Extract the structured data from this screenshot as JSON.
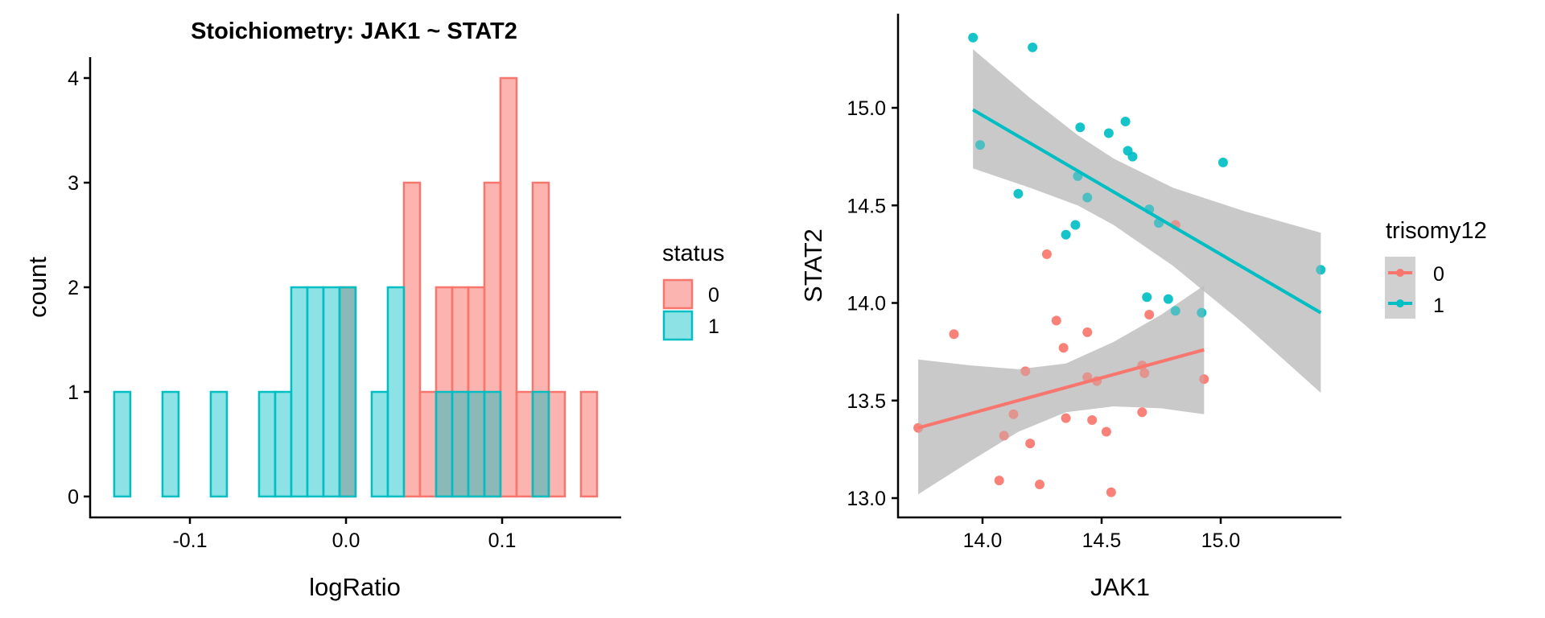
{
  "chart_data": [
    {
      "type": "bar",
      "subtype": "histogram",
      "title": "Stoichiometry: JAK1 ~ STAT2",
      "xlabel": "logRatio",
      "ylabel": "count",
      "xlim": [
        -0.1485,
        0.1608
      ],
      "ylim": [
        0,
        4
      ],
      "xticks": [
        -0.1,
        0.0,
        0.1
      ],
      "xtick_labels": [
        "-0.1",
        "0.0",
        "0.1"
      ],
      "yticks": [
        0,
        1,
        2,
        3,
        4
      ],
      "ytick_labels": [
        "0",
        "1",
        "2",
        "3",
        "4"
      ],
      "bins": 30,
      "bin_start": -0.1485,
      "bin_width": 0.01031,
      "grid": false,
      "legend": {
        "title": "status",
        "position": "right"
      },
      "series": [
        {
          "name": "0",
          "fill": "#F8766D",
          "counts": [
            0,
            0,
            0,
            0,
            0,
            0,
            0,
            0,
            0,
            0,
            0,
            0,
            0,
            0,
            2,
            0,
            0,
            0,
            3,
            1,
            2,
            2,
            2,
            3,
            4,
            1,
            3,
            1,
            0,
            1
          ]
        },
        {
          "name": "1",
          "fill": "#00BFC4",
          "counts": [
            1,
            0,
            0,
            1,
            0,
            0,
            1,
            0,
            0,
            1,
            1,
            2,
            2,
            2,
            2,
            0,
            1,
            2,
            0,
            0,
            1,
            1,
            1,
            1,
            0,
            0,
            1,
            0,
            0,
            0
          ]
        }
      ]
    },
    {
      "type": "scatter",
      "xlabel": "JAK1",
      "ylabel": "STAT2",
      "xlim": [
        13.68,
        15.49
      ],
      "ylim": [
        12.9,
        15.44
      ],
      "xticks": [
        14.0,
        14.5,
        15.0
      ],
      "xtick_labels": [
        "14.0",
        "14.5",
        "15.0"
      ],
      "yticks": [
        13.0,
        13.5,
        14.0,
        14.5,
        15.0
      ],
      "ytick_labels": [
        "13.0",
        "13.5",
        "14.0",
        "14.5",
        "15.0"
      ],
      "grid": false,
      "legend": {
        "title": "trisomy12",
        "position": "right"
      },
      "series": [
        {
          "name": "0",
          "color": "#F8766D",
          "points": [
            [
              13.88,
              13.84
            ],
            [
              14.31,
              13.91
            ],
            [
              14.44,
              13.85
            ],
            [
              14.34,
              13.77
            ],
            [
              14.7,
              13.94
            ],
            [
              14.18,
              13.65
            ],
            [
              14.44,
              13.62
            ],
            [
              14.48,
              13.6
            ],
            [
              14.67,
              13.68
            ],
            [
              14.68,
              13.64
            ],
            [
              14.93,
              13.61
            ],
            [
              13.73,
              13.36
            ],
            [
              14.13,
              13.43
            ],
            [
              14.09,
              13.32
            ],
            [
              14.35,
              13.41
            ],
            [
              14.46,
              13.4
            ],
            [
              14.52,
              13.34
            ],
            [
              14.67,
              13.44
            ],
            [
              14.2,
              13.28
            ],
            [
              14.07,
              13.09
            ],
            [
              14.24,
              13.07
            ],
            [
              14.54,
              13.03
            ],
            [
              14.27,
              14.25
            ],
            [
              14.81,
              14.4
            ]
          ],
          "fit_line": [
            [
              13.73,
              13.36
            ],
            [
              14.93,
              13.76
            ]
          ],
          "ribbon": [
            [
              13.73,
              13.02,
              13.71
            ],
            [
              13.95,
              13.19,
              13.68
            ],
            [
              14.15,
              13.34,
              13.66
            ],
            [
              14.35,
              13.44,
              13.69
            ],
            [
              14.55,
              13.47,
              13.8
            ],
            [
              14.75,
              13.46,
              13.94
            ],
            [
              14.93,
              13.43,
              14.09
            ]
          ]
        },
        {
          "name": "1",
          "color": "#00BFC4",
          "points": [
            [
              13.96,
              15.36
            ],
            [
              14.21,
              15.31
            ],
            [
              13.99,
              14.81
            ],
            [
              14.41,
              14.9
            ],
            [
              14.53,
              14.87
            ],
            [
              14.6,
              14.93
            ],
            [
              14.61,
              14.78
            ],
            [
              14.63,
              14.75
            ],
            [
              15.01,
              14.72
            ],
            [
              14.4,
              14.65
            ],
            [
              14.15,
              14.56
            ],
            [
              14.44,
              14.54
            ],
            [
              14.7,
              14.48
            ],
            [
              14.74,
              14.41
            ],
            [
              14.39,
              14.4
            ],
            [
              14.35,
              14.35
            ],
            [
              15.42,
              14.17
            ],
            [
              14.69,
              14.03
            ],
            [
              14.78,
              14.02
            ],
            [
              14.81,
              13.96
            ],
            [
              14.92,
              13.95
            ]
          ],
          "fit_line": [
            [
              13.96,
              14.99
            ],
            [
              15.42,
              13.95
            ]
          ],
          "ribbon": [
            [
              13.96,
              14.69,
              15.3
            ],
            [
              14.2,
              14.59,
              15.05
            ],
            [
              14.4,
              14.5,
              14.86
            ],
            [
              14.55,
              14.4,
              14.74
            ],
            [
              14.8,
              14.19,
              14.59
            ],
            [
              15.1,
              13.89,
              14.47
            ],
            [
              15.42,
              13.54,
              14.36
            ]
          ]
        }
      ]
    }
  ]
}
